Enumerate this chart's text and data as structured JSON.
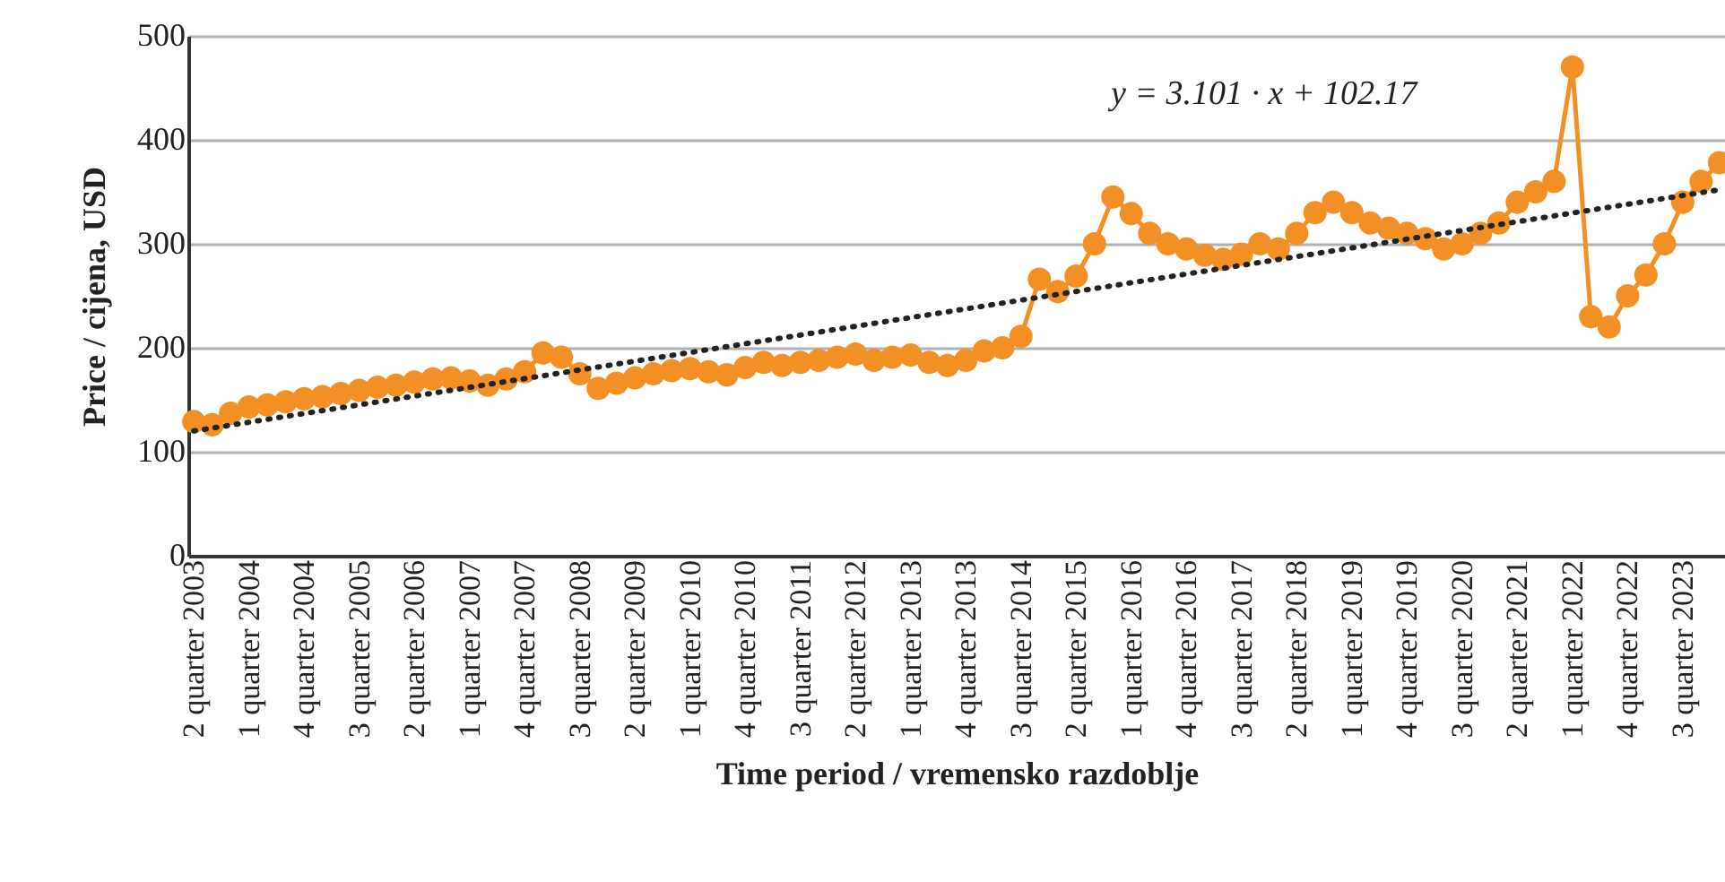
{
  "chart_data": {
    "type": "line",
    "xlabel": "Time period / vremensko razdoblje",
    "ylabel": "Price / cijena, USD",
    "categories": [
      "2 quarter 2003",
      null,
      null,
      "1 quarter 2004",
      null,
      null,
      "4 quarter 2004",
      null,
      null,
      "3 quarter 2005",
      null,
      null,
      "2 quarter 2006",
      null,
      null,
      "1 quarter 2007",
      null,
      null,
      "4 quarter 2007",
      null,
      null,
      "3 quarter 2008",
      null,
      null,
      "2 quarter 2009",
      null,
      null,
      "1 quarter 2010",
      null,
      null,
      "4 quarter 2010",
      null,
      null,
      "3 quarter 2011",
      null,
      null,
      "2 quarter 2012",
      null,
      null,
      "1 quarter 2013",
      null,
      null,
      "4 quarter 2013",
      null,
      null,
      "3 quarter 2014",
      null,
      null,
      "2 quarter 2015",
      null,
      null,
      "1 quarter 2016",
      null,
      null,
      "4 quarter 2016",
      null,
      null,
      "3 quarter 2017",
      null,
      null,
      "2 quarter 2018",
      null,
      null,
      "1 quarter 2019",
      null,
      null,
      "4 quarter 2019",
      null,
      null,
      "3 quarter 2020",
      null,
      null,
      "2 quarter 2021",
      null,
      null,
      "1 quarter 2022",
      null,
      null,
      "4 quarter 2022",
      null,
      null,
      "3 quarter 2023",
      null,
      null
    ],
    "series": [
      {
        "color": "#f39025",
        "marker": "circle",
        "line_style": "solid",
        "values": [
          129,
          126,
          137,
          143,
          145,
          148,
          151,
          153,
          156,
          159,
          162,
          164,
          167,
          170,
          171,
          168,
          164,
          170,
          177,
          195,
          191,
          175,
          161,
          166,
          171,
          175,
          178,
          180,
          177,
          174,
          181,
          186,
          183,
          186,
          188,
          191,
          194,
          188,
          191,
          193,
          186,
          183,
          188,
          197,
          200,
          211,
          266,
          254,
          269,
          300,
          345,
          329,
          310,
          300,
          295,
          289,
          285,
          290,
          300,
          295,
          310,
          330,
          340,
          330,
          320,
          315,
          310,
          305,
          295,
          300,
          310,
          320,
          340,
          350,
          360,
          470,
          230,
          220,
          250,
          270,
          300,
          340,
          360,
          378
        ]
      },
      {
        "type": "line",
        "color": "#222222",
        "marker": "none",
        "line_style": "dotted",
        "values": [
          120,
          null,
          null,
          null,
          null,
          null,
          null,
          null,
          null,
          null,
          null,
          null,
          null,
          null,
          null,
          null,
          null,
          null,
          null,
          null,
          null,
          null,
          null,
          null,
          null,
          null,
          null,
          null,
          null,
          null,
          null,
          null,
          null,
          null,
          null,
          null,
          null,
          null,
          null,
          null,
          null,
          null,
          null,
          null,
          null,
          null,
          null,
          null,
          null,
          null,
          null,
          null,
          null,
          null,
          null,
          null,
          null,
          null,
          null,
          null,
          null,
          null,
          null,
          null,
          null,
          null,
          null,
          null,
          null,
          null,
          null,
          null,
          null,
          null,
          null,
          null,
          null,
          null,
          null,
          null,
          null,
          null,
          null,
          352
        ]
      }
    ],
    "annotations": [
      "y = 3.101 · x + 102.17"
    ],
    "ylim": [
      0,
      500
    ],
    "yticks": [
      0,
      100,
      200,
      300,
      400,
      500
    ],
    "grid": "y"
  }
}
